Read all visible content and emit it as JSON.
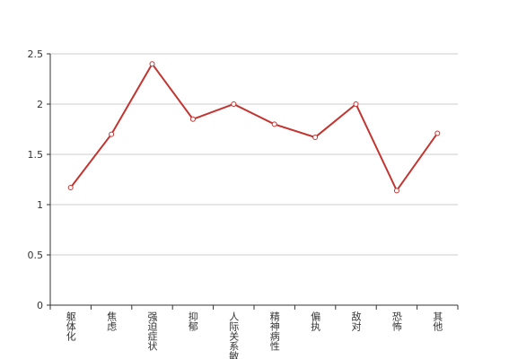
{
  "chart_data": {
    "type": "line",
    "categories": [
      "躯体化",
      "焦虑",
      "强迫症状",
      "抑郁",
      "人际关系敏感",
      "精神病性",
      "偏执",
      "敌对",
      "恐怖",
      "其他"
    ],
    "series": [
      {
        "color": "#c23531",
        "values": [
          1.17,
          1.7,
          2.4,
          1.85,
          2.0,
          1.8,
          1.67,
          2.0,
          1.14,
          1.71
        ]
      }
    ],
    "ylim": [
      0,
      2.5
    ],
    "yticks": [
      0,
      0.5,
      1,
      1.5,
      2,
      2.5
    ],
    "grid": true
  }
}
